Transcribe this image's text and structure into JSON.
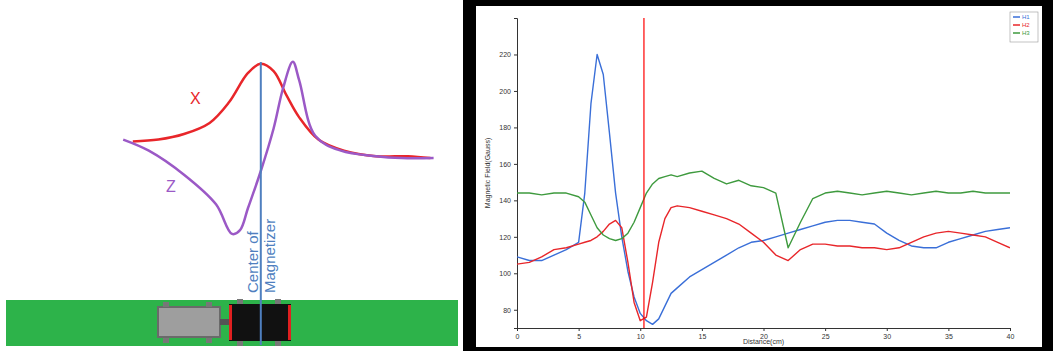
{
  "chart_data": [
    {
      "type": "line",
      "tick_labels": false,
      "xlim": [
        0,
        100
      ],
      "ylim": [
        0,
        100
      ],
      "series": [
        {
          "name": "X",
          "color": "#e8262a",
          "x": [
            4,
            12,
            20,
            28,
            34,
            40,
            44,
            48,
            52,
            56,
            62,
            70,
            80,
            90,
            97
          ],
          "values": [
            56,
            57,
            60,
            66,
            77,
            93,
            98,
            94,
            81,
            69,
            57,
            51,
            48,
            48,
            47
          ]
        },
        {
          "name": "Z",
          "color": "#9b59c6",
          "x": [
            1,
            9,
            20,
            30,
            35,
            37.5,
            40,
            44,
            48,
            51,
            54,
            56,
            61,
            69,
            80,
            88,
            98
          ],
          "values": [
            57,
            51,
            38,
            22,
            6,
            8,
            20,
            40,
            63,
            85,
            99,
            89,
            59,
            51,
            48,
            47,
            47
          ]
        }
      ],
      "annotations": [
        {
          "text": "Center of Magnetizer",
          "x": 44,
          "color": "#4f7fbf"
        }
      ]
    },
    {
      "type": "line",
      "xlabel": "Distance(cm)",
      "ylabel": "Magnetic Field(Gauss)",
      "x": [
        0,
        1,
        2,
        3,
        4,
        5,
        5.5,
        6,
        6.5,
        7,
        7.5,
        8,
        8.5,
        9,
        9.5,
        10,
        10.5,
        11,
        11.5,
        12,
        12.5,
        13,
        14,
        15,
        16,
        17,
        18,
        19,
        20,
        21,
        22,
        23,
        24,
        25,
        26,
        27,
        28,
        29,
        30,
        31,
        32,
        33,
        34,
        35,
        36,
        37,
        38,
        39,
        40
      ],
      "xlim": [
        0,
        40
      ],
      "xticks": [
        0,
        5,
        10,
        15,
        20,
        25,
        30,
        35,
        40
      ],
      "ylim": [
        70,
        240
      ],
      "yticks": [
        80,
        100,
        120,
        140,
        160,
        180,
        200,
        220
      ],
      "legend": "upper right",
      "series": [
        {
          "name": "H1",
          "color": "#3a6fd8",
          "values": [
            109,
            107,
            107,
            110,
            113,
            117,
            144,
            193,
            220,
            209,
            177,
            144,
            120,
            101,
            87,
            78,
            74,
            72,
            75,
            82,
            89,
            92,
            98,
            102,
            106,
            110,
            114,
            117,
            118,
            120,
            122,
            124,
            126,
            128,
            129,
            129,
            128,
            127,
            122,
            118,
            115,
            114,
            114,
            117,
            119,
            121,
            123,
            124,
            125
          ]
        },
        {
          "name": "H2",
          "color": "#e8262a",
          "values": [
            105,
            106,
            109,
            113,
            114,
            116,
            117,
            118,
            120,
            123,
            127,
            129,
            125,
            106,
            84,
            74,
            76,
            95,
            117,
            130,
            136,
            137,
            136,
            134,
            132,
            130,
            127,
            122,
            117,
            110,
            107,
            113,
            116,
            116,
            115,
            115,
            114,
            114,
            113,
            114,
            117,
            120,
            122,
            123,
            122,
            121,
            120,
            117,
            114
          ]
        },
        {
          "name": "H3",
          "color": "#3e9a3e",
          "values": [
            144,
            144,
            143,
            144,
            144,
            142,
            139,
            132,
            125,
            121,
            119,
            118,
            119,
            122,
            128,
            136,
            144,
            149,
            152,
            153,
            154,
            153,
            155,
            156,
            152,
            149,
            151,
            148,
            147,
            144,
            114,
            128,
            141,
            144,
            145,
            144,
            143,
            144,
            145,
            144,
            143,
            144,
            145,
            144,
            144,
            145,
            144,
            144,
            144
          ]
        }
      ],
      "vlines": [
        {
          "x": 10.3,
          "color": "#ff0000"
        }
      ]
    }
  ]
}
